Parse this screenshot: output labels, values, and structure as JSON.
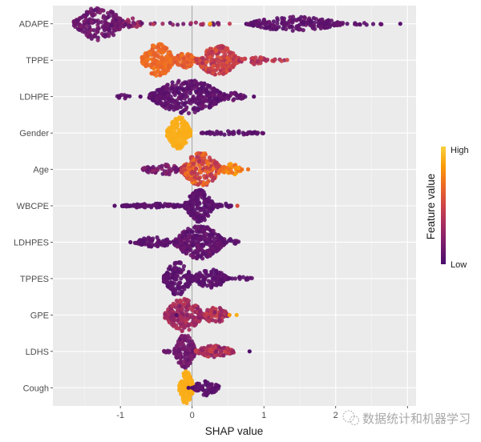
{
  "chart_data": {
    "type": "scatter",
    "subtype": "shap-beeswarm",
    "title": "",
    "xlabel": "SHAP value",
    "ylabel": "",
    "xlim": [
      -1.94,
      3.12
    ],
    "x_ticks": [
      -1,
      0,
      1,
      2,
      3
    ],
    "x_tick_labels": [
      "-1",
      "0",
      "1",
      "2",
      ""
    ],
    "grid": true,
    "zero_line": 0,
    "legend": {
      "title": "Feature value",
      "high_label": "High",
      "low_label": "Low",
      "placement": "right",
      "colors": [
        "#4a0c6b",
        "#781c6d",
        "#a52c60",
        "#cf4446",
        "#ed6925",
        "#fb9b06",
        "#f7d13d"
      ]
    },
    "features": [
      {
        "name": "ADAPE",
        "segments": [
          {
            "x0": -1.65,
            "x1": -0.95,
            "h": 1.0,
            "n": 220,
            "c": [
              0.05,
              0.2
            ]
          },
          {
            "x0": -0.95,
            "x1": -0.7,
            "h": 0.35,
            "n": 30,
            "c": [
              0.1,
              0.4
            ]
          },
          {
            "x0": -0.7,
            "x1": 0.75,
            "h": 0.08,
            "n": 22,
            "c": [
              0.05,
              0.45
            ]
          },
          {
            "x0": 0.75,
            "x1": 2.1,
            "h": 0.42,
            "n": 200,
            "c": [
              0.03,
              0.12
            ]
          },
          {
            "x0": 2.1,
            "x1": 2.75,
            "h": 0.06,
            "n": 12,
            "c": [
              0.03,
              0.1
            ]
          }
        ],
        "outliers": [
          {
            "x": 2.9,
            "c": 0.05
          },
          {
            "x": 0.25,
            "c": 0.85
          }
        ]
      },
      {
        "name": "TPPE",
        "segments": [
          {
            "x0": -0.7,
            "x1": -0.25,
            "h": 1.0,
            "n": 200,
            "c": [
              0.62,
              0.72
            ]
          },
          {
            "x0": -0.25,
            "x1": 0.05,
            "h": 0.45,
            "n": 80,
            "c": [
              0.55,
              0.7
            ]
          },
          {
            "x0": 0.05,
            "x1": 0.65,
            "h": 0.9,
            "n": 230,
            "c": [
              0.35,
              0.6
            ]
          },
          {
            "x0": 0.65,
            "x1": 1.05,
            "h": 0.25,
            "n": 40,
            "c": [
              0.3,
              0.5
            ]
          },
          {
            "x0": 1.05,
            "x1": 1.35,
            "h": 0.06,
            "n": 9,
            "c": [
              0.25,
              0.55
            ]
          }
        ],
        "outliers": []
      },
      {
        "name": "LDHPE",
        "segments": [
          {
            "x0": -1.05,
            "x1": -0.85,
            "h": 0.15,
            "n": 10,
            "c": [
              0.03,
              0.1
            ]
          },
          {
            "x0": -0.6,
            "x1": 0.45,
            "h": 1.0,
            "n": 380,
            "c": [
              0.03,
              0.12
            ]
          },
          {
            "x0": 0.45,
            "x1": 0.75,
            "h": 0.25,
            "n": 30,
            "c": [
              0.03,
              0.15
            ]
          }
        ],
        "outliers": [
          {
            "x": -0.72,
            "c": 0.05
          },
          {
            "x": 0.86,
            "c": 0.05
          }
        ]
      },
      {
        "name": "Gender",
        "segments": [
          {
            "x0": -0.35,
            "x1": -0.02,
            "h": 1.0,
            "n": 200,
            "c": [
              0.88,
              0.9
            ]
          },
          {
            "x0": 0.12,
            "x1": 1.0,
            "h": 0.12,
            "n": 55,
            "c": [
              0.03,
              0.1
            ]
          }
        ],
        "outliers": []
      },
      {
        "name": "Age",
        "segments": [
          {
            "x0": -0.7,
            "x1": -0.15,
            "h": 0.35,
            "n": 70,
            "c": [
              0.08,
              0.25
            ]
          },
          {
            "x0": -0.15,
            "x1": 0.4,
            "h": 1.0,
            "n": 260,
            "c": [
              0.35,
              0.75
            ]
          },
          {
            "x0": 0.4,
            "x1": 0.7,
            "h": 0.35,
            "n": 50,
            "c": [
              0.65,
              0.85
            ]
          }
        ],
        "outliers": [
          {
            "x": 0.78,
            "c": 0.7
          }
        ]
      },
      {
        "name": "WBCPE",
        "segments": [
          {
            "x0": -1.0,
            "x1": -0.1,
            "h": 0.13,
            "n": 90,
            "c": [
              0.03,
              0.1
            ]
          },
          {
            "x0": -0.1,
            "x1": 0.3,
            "h": 1.0,
            "n": 180,
            "c": [
              0.03,
              0.1
            ]
          },
          {
            "x0": 0.3,
            "x1": 0.55,
            "h": 0.15,
            "n": 20,
            "c": [
              0.03,
              0.1
            ]
          }
        ],
        "outliers": [
          {
            "x": -1.08,
            "c": 0.05
          },
          {
            "x": 0.63,
            "c": 0.55
          }
        ]
      },
      {
        "name": "LDHPES",
        "segments": [
          {
            "x0": -0.8,
            "x1": -0.25,
            "h": 0.3,
            "n": 70,
            "c": [
              0.03,
              0.1
            ]
          },
          {
            "x0": -0.25,
            "x1": 0.45,
            "h": 1.0,
            "n": 300,
            "c": [
              0.03,
              0.14
            ]
          },
          {
            "x0": 0.45,
            "x1": 0.65,
            "h": 0.2,
            "n": 15,
            "c": [
              0.03,
              0.1
            ]
          }
        ],
        "outliers": [
          {
            "x": -0.86,
            "c": 0.05
          }
        ]
      },
      {
        "name": "TPPES",
        "segments": [
          {
            "x0": -0.4,
            "x1": 0.0,
            "h": 1.0,
            "n": 160,
            "c": [
              0.03,
              0.1
            ]
          },
          {
            "x0": 0.0,
            "x1": 0.5,
            "h": 0.55,
            "n": 120,
            "c": [
              0.03,
              0.1
            ]
          },
          {
            "x0": 0.5,
            "x1": 0.85,
            "h": 0.1,
            "n": 14,
            "c": [
              0.03,
              0.1
            ]
          }
        ],
        "outliers": []
      },
      {
        "name": "GPE",
        "segments": [
          {
            "x0": -0.38,
            "x1": 0.15,
            "h": 1.0,
            "n": 230,
            "c": [
              0.2,
              0.42
            ]
          },
          {
            "x0": 0.15,
            "x1": 0.5,
            "h": 0.5,
            "n": 80,
            "c": [
              0.2,
              0.5
            ]
          }
        ],
        "outliers": [
          {
            "x": 0.52,
            "c": 0.8
          },
          {
            "x": 0.62,
            "c": 0.9
          },
          {
            "x": -0.22,
            "c": 0.05
          }
        ]
      },
      {
        "name": "LDHS",
        "segments": [
          {
            "x0": -0.4,
            "x1": -0.25,
            "h": 0.1,
            "n": 8,
            "c": [
              0.05,
              0.15
            ]
          },
          {
            "x0": -0.25,
            "x1": 0.05,
            "h": 1.0,
            "n": 150,
            "c": [
              0.08,
              0.2
            ]
          },
          {
            "x0": 0.05,
            "x1": 0.58,
            "h": 0.35,
            "n": 140,
            "c": [
              0.2,
              0.5
            ]
          }
        ],
        "outliers": [
          {
            "x": 0.8,
            "c": 0.02
          }
        ]
      },
      {
        "name": "Cough",
        "segments": [
          {
            "x0": -0.18,
            "x1": 0.02,
            "h": 1.0,
            "n": 170,
            "c": [
              0.88,
              0.9
            ]
          },
          {
            "x0": 0.02,
            "x1": 0.38,
            "h": 0.5,
            "n": 70,
            "c": [
              0.03,
              0.1
            ]
          }
        ],
        "outliers": [
          {
            "x": -0.05,
            "c": 0.02
          },
          {
            "x": 0.0,
            "c": 0.02
          }
        ]
      }
    ]
  },
  "watermark": {
    "icon": "wechat-icon",
    "text": "数据统计和机器学习"
  }
}
